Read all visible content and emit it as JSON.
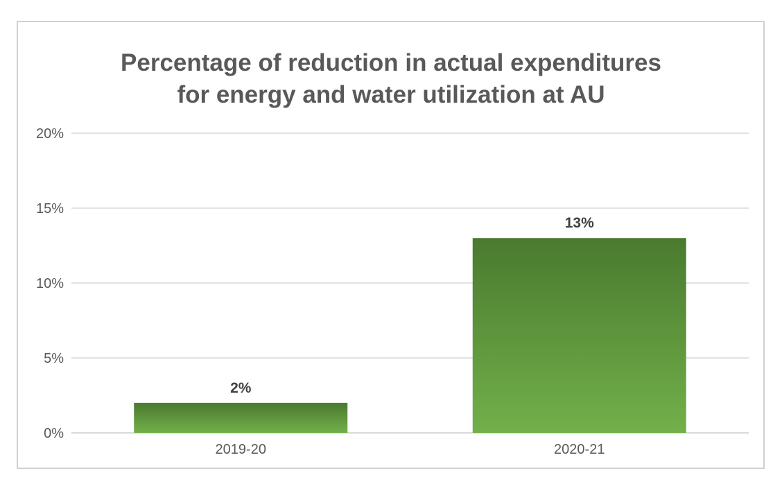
{
  "chart_data": {
    "type": "bar",
    "title_lines": [
      "Percentage of reduction in actual expenditures",
      "for energy and water utilization at AU"
    ],
    "categories": [
      "2019-20",
      "2020-21"
    ],
    "values": [
      2,
      13
    ],
    "data_labels": [
      "2%",
      "13%"
    ],
    "yticks": [
      0,
      5,
      10,
      15,
      20
    ],
    "ytick_labels": [
      "0%",
      "5%",
      "10%",
      "15%",
      "20%"
    ],
    "ylim": [
      0,
      20
    ],
    "grid": true,
    "colors": {
      "bar_top": "#4a7a2f",
      "bar_bottom": "#72b04a",
      "grid": "#d9d9d9"
    }
  }
}
